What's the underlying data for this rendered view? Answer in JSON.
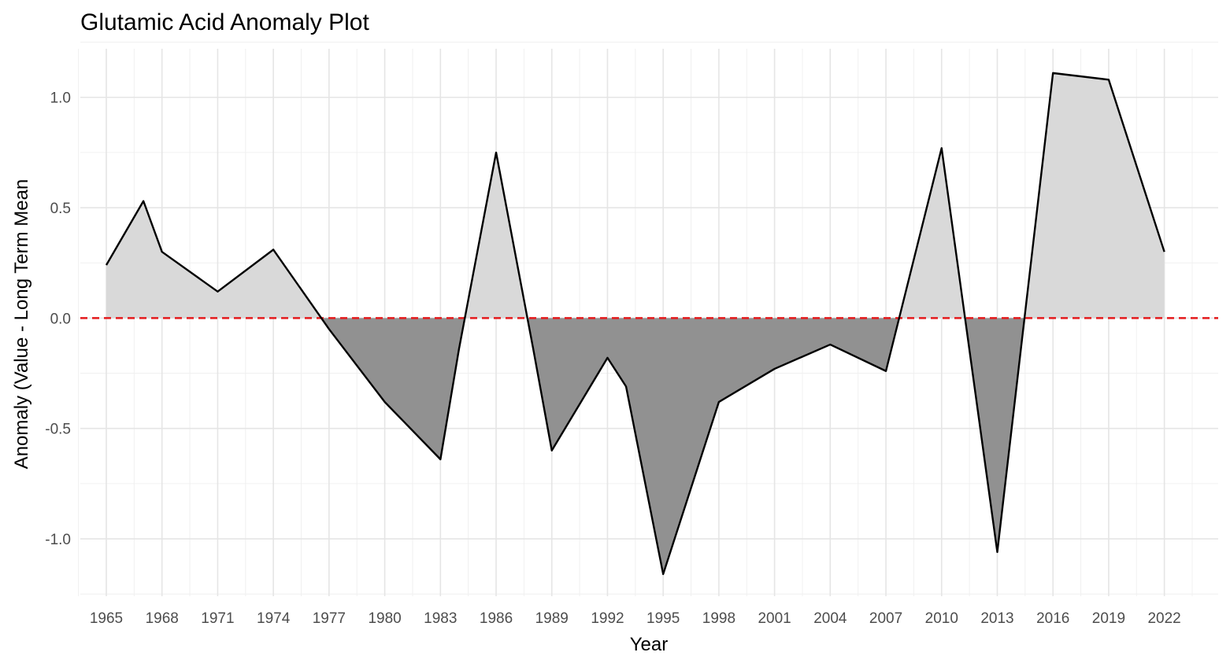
{
  "chart_data": {
    "type": "area",
    "title": "Glutamic Acid Anomaly Plot",
    "xlabel": "Year",
    "ylabel": "Anomaly (Value - Long Term Mean",
    "xlim": [
      1963.6,
      2024.9
    ],
    "ylim": [
      -1.26,
      1.22
    ],
    "x_ticks": [
      1965,
      1968,
      1971,
      1974,
      1977,
      1980,
      1983,
      1986,
      1989,
      1992,
      1995,
      1998,
      2001,
      2004,
      2007,
      2010,
      2013,
      2016,
      2019,
      2022
    ],
    "y_ticks": [
      -1.0,
      -0.5,
      0.0,
      0.5,
      1.0
    ],
    "y_tick_labels": [
      "-1.0",
      "-0.5",
      "0.0",
      "0.5",
      "1.0"
    ],
    "grid": true,
    "reference_line": {
      "y": 0,
      "style": "dashed",
      "color": "#e41a1c"
    },
    "series": [
      {
        "x": [
          1965,
          1967,
          1968,
          1971,
          1974,
          1977,
          1980,
          1983,
          1984,
          1986,
          1988,
          1989,
          1992,
          1993,
          1995,
          1998,
          2001,
          2004,
          2007,
          2010,
          2013,
          2016,
          2019,
          2022
        ],
        "values": [
          0.24,
          0.53,
          0.3,
          0.12,
          0.31,
          -0.05,
          -0.38,
          -0.64,
          -0.14,
          0.75,
          -0.14,
          -0.6,
          -0.18,
          -0.31,
          -1.16,
          -0.38,
          -0.23,
          -0.12,
          -0.24,
          0.77,
          -1.06,
          1.11,
          1.08,
          0.3
        ]
      }
    ],
    "colors": {
      "positive_fill": "#d9d9d9",
      "negative_fill": "#919191",
      "line": "#000000",
      "grid_major": "#e5e5e5",
      "grid_minor": "#f0f0f0"
    }
  }
}
